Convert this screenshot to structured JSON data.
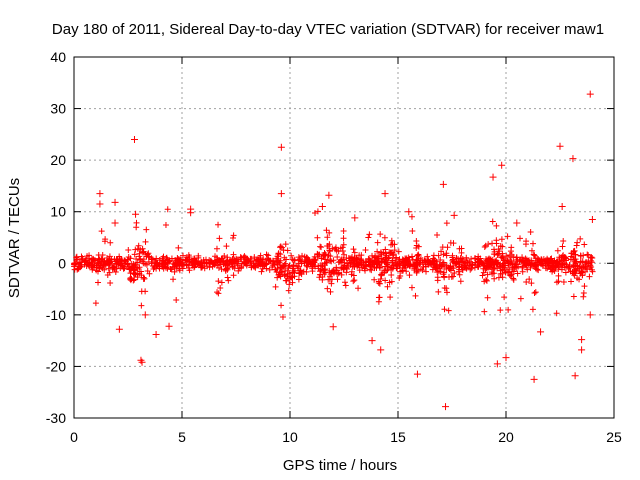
{
  "chart_data": {
    "type": "scatter",
    "title": "Day 180 of 2011, Sidereal Day-to-day VTEC variation (SDTVAR) for receiver maw1",
    "xlabel": "GPS time / hours",
    "ylabel": "SDTVAR / TECUs",
    "xlim": [
      0,
      25
    ],
    "ylim": [
      -30,
      40
    ],
    "xticks": [
      0,
      5,
      10,
      15,
      20,
      25
    ],
    "yticks": [
      -30,
      -20,
      -10,
      0,
      10,
      20,
      30,
      40
    ],
    "grid": true,
    "marker": "+",
    "color": "#ff0000",
    "series": [
      {
        "name": "SDTVAR",
        "outliers": [
          {
            "x": 1.2,
            "y": 13.5
          },
          {
            "x": 1.2,
            "y": 11.5
          },
          {
            "x": 1.9,
            "y": 11.8
          },
          {
            "x": 1.9,
            "y": 7.8
          },
          {
            "x": 2.1,
            "y": -12.8
          },
          {
            "x": 2.8,
            "y": 24.0
          },
          {
            "x": 2.85,
            "y": 9.5
          },
          {
            "x": 3.1,
            "y": -18.8
          },
          {
            "x": 3.15,
            "y": -19.2
          },
          {
            "x": 3.3,
            "y": -10.0
          },
          {
            "x": 3.8,
            "y": -13.8
          },
          {
            "x": 4.4,
            "y": -12.2
          },
          {
            "x": 5.4,
            "y": 10.5
          },
          {
            "x": 5.4,
            "y": 9.8
          },
          {
            "x": 9.6,
            "y": 22.5
          },
          {
            "x": 9.6,
            "y": 13.5
          },
          {
            "x": 11.5,
            "y": 11.0
          },
          {
            "x": 11.8,
            "y": 13.2
          },
          {
            "x": 12.0,
            "y": -12.3
          },
          {
            "x": 13.0,
            "y": 8.8
          },
          {
            "x": 13.8,
            "y": -15.0
          },
          {
            "x": 14.2,
            "y": -16.8
          },
          {
            "x": 14.4,
            "y": 13.5
          },
          {
            "x": 15.5,
            "y": 10.0
          },
          {
            "x": 15.9,
            "y": -21.5
          },
          {
            "x": 17.1,
            "y": 15.3
          },
          {
            "x": 17.2,
            "y": -27.8
          },
          {
            "x": 17.6,
            "y": 9.3
          },
          {
            "x": 19.4,
            "y": 16.7
          },
          {
            "x": 19.6,
            "y": -19.5
          },
          {
            "x": 19.8,
            "y": 19.0
          },
          {
            "x": 20.0,
            "y": -18.3
          },
          {
            "x": 20.5,
            "y": 7.8
          },
          {
            "x": 21.3,
            "y": -22.5
          },
          {
            "x": 21.6,
            "y": -13.3
          },
          {
            "x": 22.5,
            "y": 22.7
          },
          {
            "x": 22.6,
            "y": 11.0
          },
          {
            "x": 23.1,
            "y": 20.3
          },
          {
            "x": 23.2,
            "y": -21.8
          },
          {
            "x": 23.5,
            "y": -14.8
          },
          {
            "x": 23.5,
            "y": -16.8
          },
          {
            "x": 23.9,
            "y": 32.8
          },
          {
            "x": 23.9,
            "y": -10.0
          },
          {
            "x": 24.0,
            "y": 8.5
          }
        ]
      }
    ]
  }
}
